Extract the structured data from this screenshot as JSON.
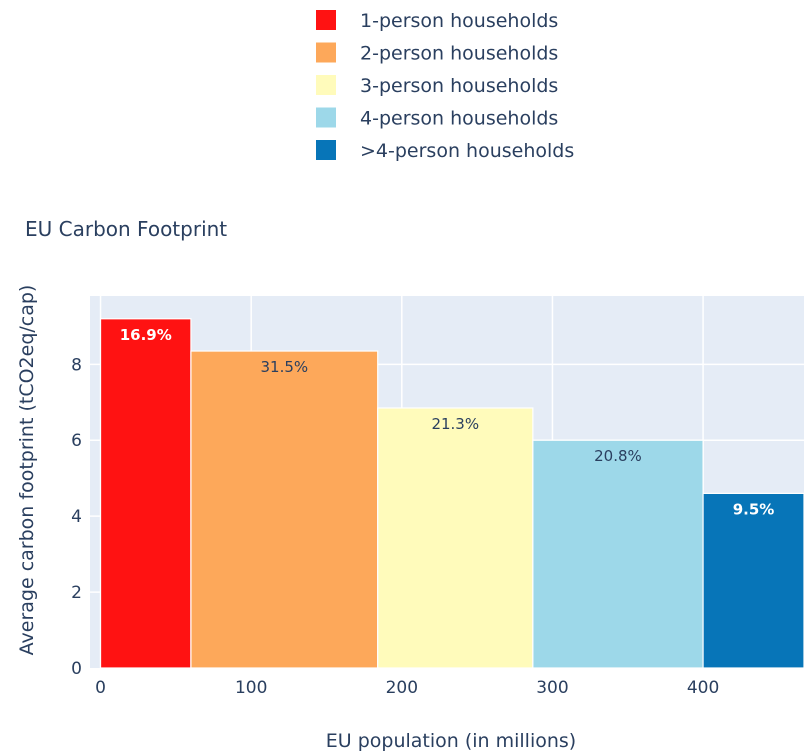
{
  "chart_data": {
    "type": "bar",
    "title": "EU Carbon Footprint",
    "xlabel": "EU population (in millions)",
    "ylabel": "Average carbon footprint (tCO2eq/cap)",
    "xlim": [
      -7,
      467
    ],
    "ylim": [
      0,
      9.8
    ],
    "xticks": [
      0,
      100,
      200,
      300,
      400
    ],
    "yticks": [
      0,
      2,
      4,
      6,
      8
    ],
    "grid": true,
    "legend_position": "top",
    "plot_background": "#e5ecf6",
    "series": [
      {
        "name": "1-person households",
        "x_start": 0,
        "x_end": 60,
        "value": 9.2,
        "label": "16.9%",
        "color": "#ff1212",
        "label_color": "#ffffff"
      },
      {
        "name": "2-person households",
        "x_start": 60,
        "x_end": 184,
        "value": 8.35,
        "label": "31.5%",
        "color": "#fda85a",
        "label_color": "#2a3f5f"
      },
      {
        "name": "3-person households",
        "x_start": 184,
        "x_end": 287,
        "value": 6.85,
        "label": "21.3%",
        "color": "#fffbbb",
        "label_color": "#2a3f5f"
      },
      {
        "name": "4-person households",
        "x_start": 287,
        "x_end": 400,
        "value": 6.0,
        "label": "20.8%",
        "color": "#9dd8e9",
        "label_color": "#2a3f5f"
      },
      {
        "name": ">4-person households",
        "x_start": 400,
        "x_end": 467,
        "value": 4.6,
        "label": "9.5%",
        "color": "#0775b8",
        "label_color": "#ffffff"
      }
    ]
  }
}
